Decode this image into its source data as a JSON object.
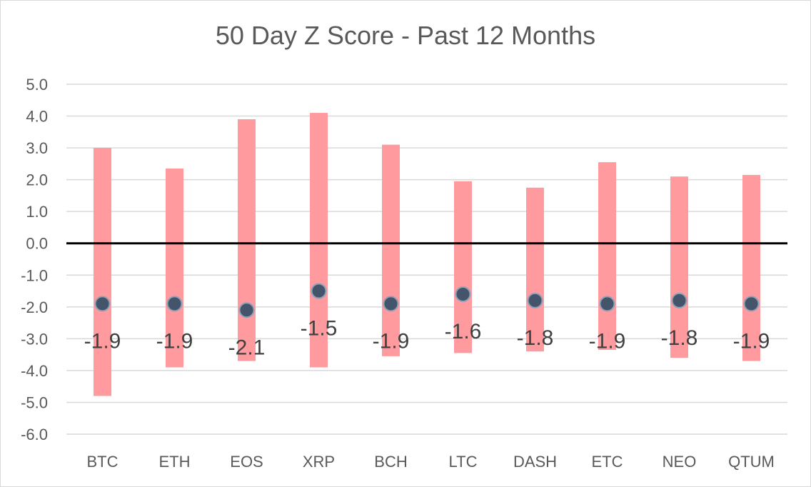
{
  "chart_data": {
    "type": "range-dot",
    "title": "50 Day Z Score - Past 12 Months",
    "categories": [
      "BTC",
      "ETH",
      "EOS",
      "XRP",
      "BCH",
      "LTC",
      "DASH",
      "ETC",
      "NEO",
      "QTUM"
    ],
    "series": [
      {
        "kind": "range",
        "low": [
          -4.8,
          -3.9,
          -3.7,
          -3.9,
          -3.55,
          -3.45,
          -3.4,
          -3.35,
          -3.6,
          -3.7
        ],
        "high": [
          3.0,
          2.35,
          3.9,
          4.1,
          3.1,
          1.95,
          1.75,
          2.55,
          2.1,
          2.15
        ]
      },
      {
        "kind": "point",
        "values": [
          -1.9,
          -1.9,
          -2.1,
          -1.5,
          -1.9,
          -1.6,
          -1.8,
          -1.9,
          -1.8,
          -1.9
        ],
        "labels": [
          "-1.9",
          "-1.9",
          "-2.1",
          "-1.5",
          "-1.9",
          "-1.6",
          "-1.8",
          "-1.9",
          "-1.8",
          "-1.9"
        ]
      }
    ],
    "yticks": [
      "5.0",
      "4.0",
      "3.0",
      "2.0",
      "1.0",
      "0.0",
      "-1.0",
      "-2.0",
      "-3.0",
      "-4.0",
      "-5.0",
      "-6.0"
    ],
    "ylim": [
      -6,
      5
    ],
    "grid": true,
    "legend": "none",
    "colors": {
      "range": "#ff9a9e",
      "point": "#44546a",
      "point_edge": "#8ea2b8",
      "zero_line": "#000000",
      "grid": "#d9d9d9",
      "text": "#595959"
    }
  }
}
